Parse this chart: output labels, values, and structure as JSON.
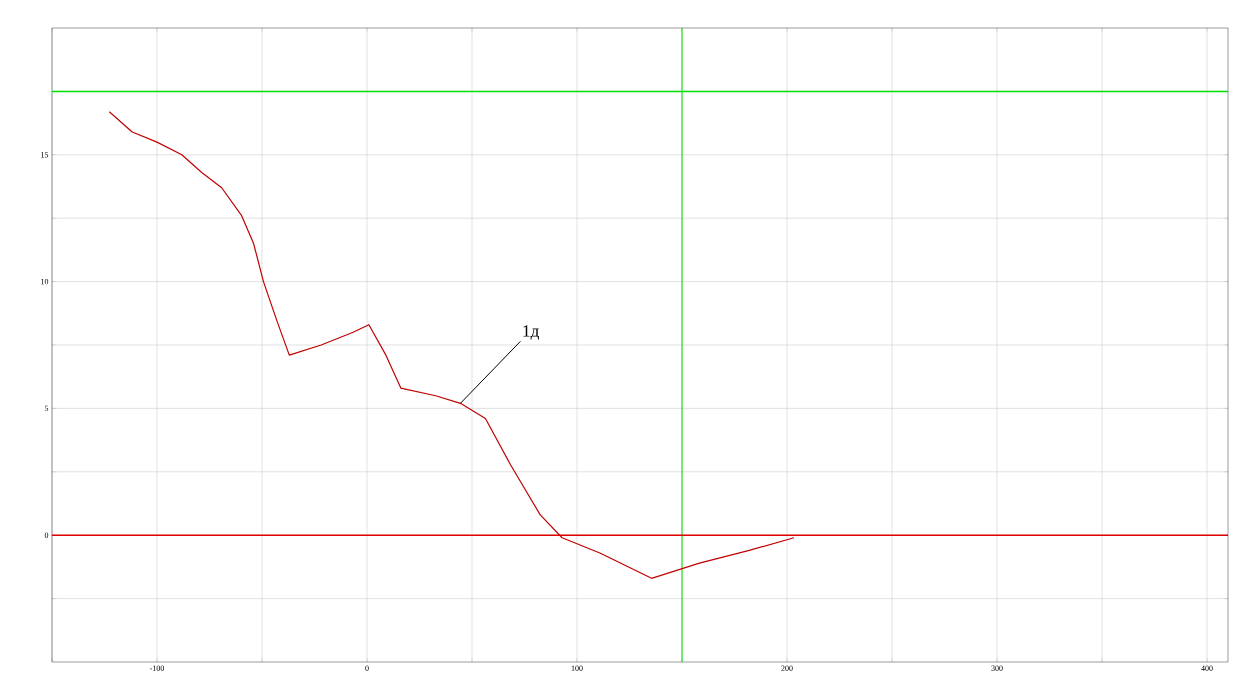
{
  "chart_data": {
    "type": "line",
    "x": [
      -122.7,
      -111.8,
      -100,
      -88.2,
      -78.7,
      -69.2,
      -59.7,
      -54,
      -49.3,
      -43.1,
      -37,
      -21.8,
      -6.6,
      0.9,
      9,
      16.1,
      32.7,
      44.5,
      56.4,
      68.2,
      82.5,
      92.9,
      110.9,
      135.5,
      158.3,
      182,
      203.3
    ],
    "series": [
      {
        "color": "#c00000",
        "values": [
          16.7,
          15.9,
          15.5,
          15.0,
          14.3,
          13.7,
          12.6,
          11.5,
          10.0,
          8.5,
          7.1,
          7.5,
          8.0,
          8.3,
          7.1,
          5.8,
          5.5,
          5.2,
          4.6,
          2.8,
          0.8,
          -0.1,
          -0.7,
          -1.7,
          -1.1,
          -0.6,
          -0.1
        ]
      }
    ],
    "xlim": [
      -150,
      410
    ],
    "ylim": [
      -5,
      20
    ],
    "xticks": [
      {
        "value": -150,
        "label": null
      },
      -100,
      {
        "value": -50,
        "label": null
      },
      0,
      {
        "value": 50,
        "label": null
      },
      100,
      {
        "value": 150,
        "label": null
      },
      200,
      {
        "value": 250,
        "label": null
      },
      300,
      {
        "value": 350,
        "label": null
      },
      400
    ],
    "yticks": [
      {
        "value": -2.5,
        "label": null
      },
      0,
      {
        "value": 2.5,
        "label": null
      },
      5,
      {
        "value": 7.5,
        "label": null
      },
      10,
      {
        "value": 12.5,
        "label": null
      },
      15,
      {
        "value": 17.5,
        "label": null
      }
    ],
    "grid": true,
    "marker": "none",
    "line_style": "solid",
    "ref_lines": [
      {
        "axis": "y",
        "value": 17.5,
        "color": "#00e000"
      },
      {
        "axis": "x",
        "value": 150,
        "color": "#00e000"
      },
      {
        "axis": "y",
        "value": 0,
        "color": "#e00000"
      }
    ],
    "annotations": [
      {
        "text": "1д",
        "x": 44.5,
        "y": 5.2
      }
    ]
  }
}
